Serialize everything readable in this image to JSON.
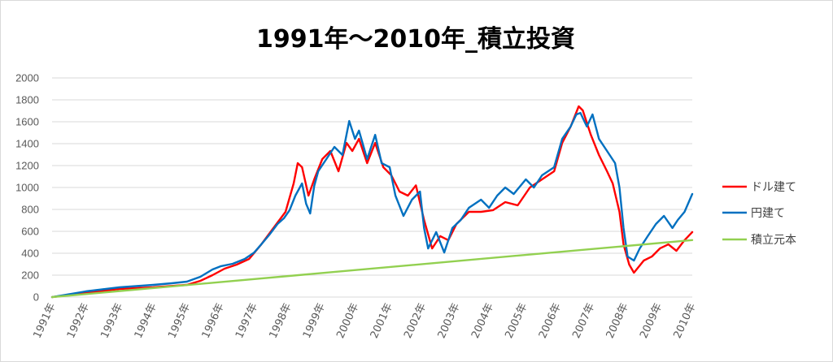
{
  "chart_data": {
    "type": "line",
    "title": "1991年～2010年_積立投資",
    "xlim": [
      1991,
      2010
    ],
    "ylim": [
      0,
      2000
    ],
    "y_ticks": [
      0,
      200,
      400,
      600,
      800,
      1000,
      1200,
      1400,
      1600,
      1800,
      2000
    ],
    "x_tick_labels": [
      "1991年",
      "1992年",
      "1993年",
      "1994年",
      "1995年",
      "1996年",
      "1997年",
      "1998年",
      "1999年",
      "2000年",
      "2001年",
      "2002年",
      "2003年",
      "2004年",
      "2005年",
      "2006年",
      "2007年",
      "2008年",
      "2009年",
      "2010年"
    ],
    "grid": "horizontal",
    "legend_position": "right",
    "series": [
      {
        "name": "ドル建て",
        "color": "#ff0000",
        "points": [
          [
            1991.0,
            0
          ],
          [
            1993.0,
            74
          ],
          [
            1994.0,
            89
          ],
          [
            1995.0,
            111
          ],
          [
            1995.4,
            148
          ],
          [
            1995.76,
            200
          ],
          [
            1996.12,
            259
          ],
          [
            1996.48,
            296
          ],
          [
            1996.85,
            348
          ],
          [
            1997.21,
            481
          ],
          [
            1997.57,
            630
          ],
          [
            1997.93,
            778
          ],
          [
            1998.17,
            1037
          ],
          [
            1998.29,
            1222
          ],
          [
            1998.42,
            1185
          ],
          [
            1998.61,
            926
          ],
          [
            1998.78,
            1074
          ],
          [
            1999.02,
            1259
          ],
          [
            1999.26,
            1333
          ],
          [
            1999.5,
            1148
          ],
          [
            1999.74,
            1407
          ],
          [
            1999.91,
            1333
          ],
          [
            2000.11,
            1444
          ],
          [
            2000.35,
            1222
          ],
          [
            2000.59,
            1407
          ],
          [
            2000.83,
            1185
          ],
          [
            2001.07,
            1111
          ],
          [
            2001.31,
            963
          ],
          [
            2001.56,
            926
          ],
          [
            2001.8,
            1019
          ],
          [
            2002.04,
            704
          ],
          [
            2002.28,
            444
          ],
          [
            2002.52,
            556
          ],
          [
            2002.76,
            519
          ],
          [
            2003.0,
            667
          ],
          [
            2003.37,
            778
          ],
          [
            2003.73,
            778
          ],
          [
            2004.09,
            793
          ],
          [
            2004.45,
            867
          ],
          [
            2004.82,
            837
          ],
          [
            2005.18,
            1000
          ],
          [
            2005.54,
            1074
          ],
          [
            2005.9,
            1148
          ],
          [
            2006.14,
            1407
          ],
          [
            2006.39,
            1556
          ],
          [
            2006.63,
            1741
          ],
          [
            2006.75,
            1704
          ],
          [
            2006.99,
            1481
          ],
          [
            2007.23,
            1296
          ],
          [
            2007.47,
            1148
          ],
          [
            2007.64,
            1037
          ],
          [
            2007.84,
            778
          ],
          [
            2007.96,
            481
          ],
          [
            2008.13,
            296
          ],
          [
            2008.27,
            222
          ],
          [
            2008.56,
            333
          ],
          [
            2008.8,
            370
          ],
          [
            2009.04,
            444
          ],
          [
            2009.29,
            481
          ],
          [
            2009.53,
            422
          ],
          [
            2009.77,
            519
          ],
          [
            2010.0,
            593
          ]
        ]
      },
      {
        "name": "円建て",
        "color": "#0070c0",
        "points": [
          [
            1991.0,
            0
          ],
          [
            1992.0,
            52
          ],
          [
            1993.0,
            89
          ],
          [
            1994.0,
            111
          ],
          [
            1994.55,
            126
          ],
          [
            1995.0,
            141
          ],
          [
            1995.4,
            185
          ],
          [
            1995.76,
            252
          ],
          [
            1996.0,
            281
          ],
          [
            1996.36,
            304
          ],
          [
            1996.72,
            348
          ],
          [
            1997.0,
            407
          ],
          [
            1997.21,
            481
          ],
          [
            1997.45,
            570
          ],
          [
            1997.69,
            667
          ],
          [
            1997.88,
            719
          ],
          [
            1998.05,
            793
          ],
          [
            1998.22,
            926
          ],
          [
            1998.42,
            1037
          ],
          [
            1998.54,
            852
          ],
          [
            1998.66,
            763
          ],
          [
            1998.78,
            1015
          ],
          [
            1998.9,
            1148
          ],
          [
            1999.14,
            1259
          ],
          [
            1999.38,
            1370
          ],
          [
            1999.62,
            1296
          ],
          [
            1999.82,
            1607
          ],
          [
            1999.99,
            1444
          ],
          [
            2000.11,
            1519
          ],
          [
            2000.35,
            1259
          ],
          [
            2000.59,
            1481
          ],
          [
            2000.78,
            1222
          ],
          [
            2001.02,
            1185
          ],
          [
            2001.19,
            926
          ],
          [
            2001.43,
            741
          ],
          [
            2001.68,
            889
          ],
          [
            2001.92,
            963
          ],
          [
            2002.04,
            630
          ],
          [
            2002.16,
            444
          ],
          [
            2002.4,
            593
          ],
          [
            2002.64,
            407
          ],
          [
            2002.88,
            630
          ],
          [
            2003.13,
            704
          ],
          [
            2003.37,
            815
          ],
          [
            2003.73,
            889
          ],
          [
            2003.97,
            815
          ],
          [
            2004.21,
            926
          ],
          [
            2004.45,
            1000
          ],
          [
            2004.7,
            941
          ],
          [
            2005.06,
            1074
          ],
          [
            2005.3,
            1000
          ],
          [
            2005.54,
            1111
          ],
          [
            2005.9,
            1185
          ],
          [
            2006.14,
            1444
          ],
          [
            2006.39,
            1556
          ],
          [
            2006.56,
            1667
          ],
          [
            2006.68,
            1681
          ],
          [
            2006.87,
            1556
          ],
          [
            2007.04,
            1667
          ],
          [
            2007.23,
            1444
          ],
          [
            2007.47,
            1333
          ],
          [
            2007.71,
            1222
          ],
          [
            2007.84,
            1000
          ],
          [
            2007.96,
            630
          ],
          [
            2008.08,
            370
          ],
          [
            2008.27,
            333
          ],
          [
            2008.44,
            444
          ],
          [
            2008.68,
            556
          ],
          [
            2008.92,
            667
          ],
          [
            2009.16,
            741
          ],
          [
            2009.41,
            630
          ],
          [
            2009.57,
            704
          ],
          [
            2009.77,
            778
          ],
          [
            2010.0,
            941
          ]
        ]
      },
      {
        "name": "積立元本",
        "color": "#92d050",
        "points": [
          [
            1991.0,
            0
          ],
          [
            2010.0,
            520
          ]
        ]
      }
    ],
    "gridline_color": "#d9d9d9"
  }
}
